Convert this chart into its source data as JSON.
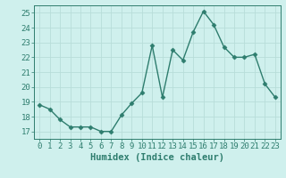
{
  "x": [
    0,
    1,
    2,
    3,
    4,
    5,
    6,
    7,
    8,
    9,
    10,
    11,
    12,
    13,
    14,
    15,
    16,
    17,
    18,
    19,
    20,
    21,
    22,
    23
  ],
  "y": [
    18.8,
    18.5,
    17.8,
    17.3,
    17.3,
    17.3,
    17.0,
    17.0,
    18.1,
    18.9,
    19.6,
    22.8,
    19.3,
    22.5,
    21.8,
    23.7,
    25.1,
    24.2,
    22.7,
    22.0,
    22.0,
    22.2,
    20.2,
    19.3
  ],
  "line_color": "#2e7d6e",
  "marker": "D",
  "marker_size": 2.5,
  "line_width": 1.0,
  "bg_color": "#cff0ed",
  "grid_color": "#b8ddd9",
  "xlabel": "Humidex (Indice chaleur)",
  "ylabel": "",
  "xlim": [
    -0.5,
    23.5
  ],
  "ylim": [
    16.5,
    25.5
  ],
  "yticks": [
    17,
    18,
    19,
    20,
    21,
    22,
    23,
    24,
    25
  ],
  "xticks": [
    0,
    1,
    2,
    3,
    4,
    5,
    6,
    7,
    8,
    9,
    10,
    11,
    12,
    13,
    14,
    15,
    16,
    17,
    18,
    19,
    20,
    21,
    22,
    23
  ],
  "tick_color": "#2e7d6e",
  "label_color": "#2e7d6e",
  "xlabel_fontsize": 7.5,
  "tick_fontsize": 6.5
}
